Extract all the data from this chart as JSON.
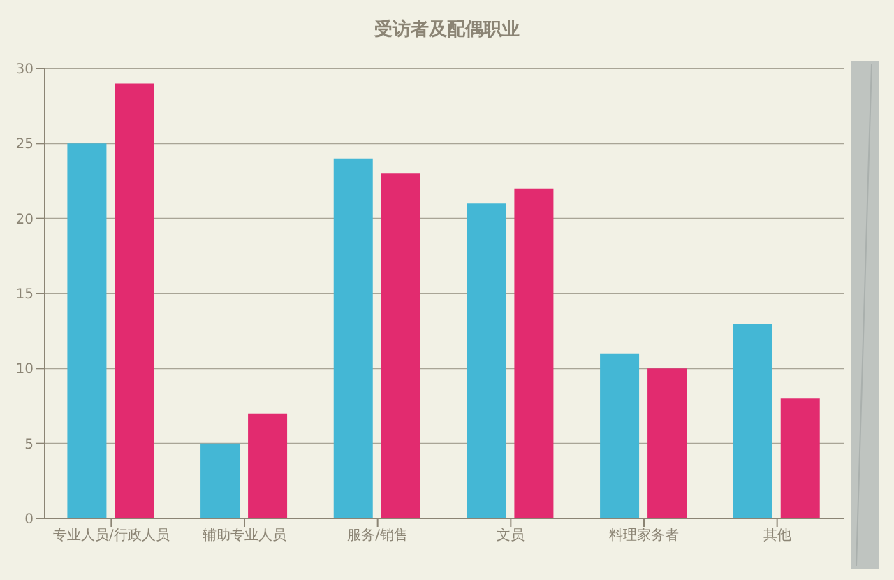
{
  "chart_data": {
    "type": "bar",
    "title": "受访者及配偶职业",
    "categories": [
      "专业人员/行政人员",
      "辅助专业人员",
      "服务/销售",
      "文员",
      "料理家务者",
      "其他"
    ],
    "series": [
      {
        "color": "#44b7d5",
        "values": [
          25,
          5,
          24,
          21,
          11,
          13
        ]
      },
      {
        "color": "#e22b6f",
        "values": [
          29,
          7,
          23,
          22,
          10,
          8
        ]
      }
    ],
    "ylim": [
      0,
      30
    ],
    "yticks": [
      0,
      5,
      10,
      15,
      20,
      25,
      30
    ],
    "grid": "y",
    "legend": false
  }
}
